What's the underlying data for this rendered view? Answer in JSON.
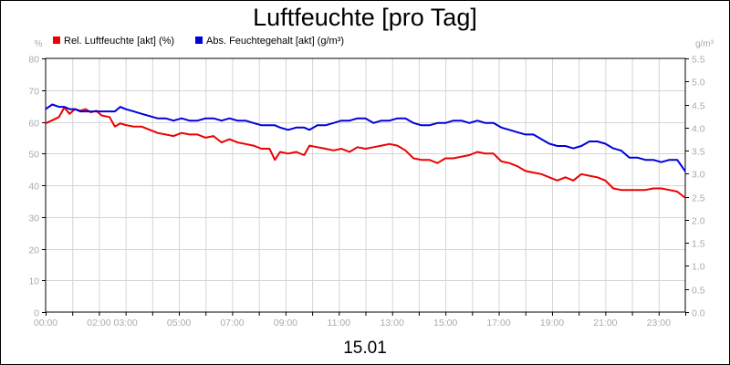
{
  "chart_data": {
    "type": "line",
    "title": "Luftfeuchte [pro Tag]",
    "xlabel": "15.01",
    "x_ticks": [
      "00:00",
      "02:00",
      "03:00",
      "05:00",
      "07:00",
      "09:00",
      "11:00",
      "13:00",
      "15:00",
      "17:00",
      "19:00",
      "21:00",
      "23:00"
    ],
    "x_tick_hours": [
      0,
      2,
      3,
      5,
      7,
      9,
      11,
      13,
      15,
      17,
      19,
      21,
      23
    ],
    "x_range_hours": [
      0,
      24
    ],
    "grid": true,
    "legend_position": "top-left",
    "y_left": {
      "unit": "%",
      "ylim": [
        0,
        80
      ],
      "ticks": [
        "0",
        "10",
        "20",
        "30",
        "40",
        "50",
        "60",
        "70",
        "80"
      ]
    },
    "y_right": {
      "unit": "g/m³",
      "ylim": [
        0,
        5.5
      ],
      "ticks": [
        "0.0",
        "0.5",
        "1.0",
        "1.5",
        "2.0",
        "2.5",
        "3.0",
        "3.5",
        "4.0",
        "4.5",
        "5.0",
        "5.5"
      ]
    },
    "series": [
      {
        "name": "Rel. Luftfeuchte [akt] (%)",
        "color": "#ee0000",
        "axis": "left",
        "x_hours": [
          0,
          0.25,
          0.5,
          0.7,
          0.9,
          1.1,
          1.3,
          1.5,
          1.7,
          1.9,
          2.1,
          2.4,
          2.6,
          2.8,
          3.0,
          3.3,
          3.6,
          3.9,
          4.2,
          4.5,
          4.8,
          5.1,
          5.4,
          5.7,
          6.0,
          6.3,
          6.6,
          6.9,
          7.2,
          7.5,
          7.8,
          8.1,
          8.4,
          8.6,
          8.8,
          9.1,
          9.4,
          9.7,
          9.9,
          10.2,
          10.5,
          10.8,
          11.1,
          11.4,
          11.7,
          12.0,
          12.3,
          12.6,
          12.9,
          13.2,
          13.5,
          13.8,
          14.1,
          14.4,
          14.7,
          15.0,
          15.3,
          15.6,
          15.9,
          16.2,
          16.5,
          16.8,
          17.1,
          17.4,
          17.7,
          18.0,
          18.3,
          18.6,
          18.9,
          19.2,
          19.5,
          19.8,
          20.1,
          20.4,
          20.7,
          21.0,
          21.3,
          21.6,
          21.9,
          22.2,
          22.5,
          22.8,
          23.1,
          23.4,
          23.7,
          24.0
        ],
        "values": [
          59.5,
          60.5,
          61.5,
          64.5,
          62.5,
          64.0,
          63.5,
          64.0,
          63.0,
          63.5,
          62.0,
          61.5,
          58.5,
          59.5,
          59.0,
          58.5,
          58.5,
          57.5,
          56.5,
          56.0,
          55.5,
          56.5,
          56.0,
          56.0,
          55.0,
          55.5,
          53.5,
          54.5,
          53.5,
          53.0,
          52.5,
          51.5,
          51.5,
          48.0,
          50.5,
          50.0,
          50.5,
          49.5,
          52.5,
          52.0,
          51.5,
          51.0,
          51.5,
          50.5,
          52.0,
          51.5,
          52.0,
          52.5,
          53.0,
          52.5,
          51.0,
          48.5,
          48.0,
          48.0,
          47.0,
          48.5,
          48.5,
          49.0,
          49.5,
          50.5,
          50.0,
          50.0,
          47.5,
          47.0,
          46.0,
          44.5,
          44.0,
          43.5,
          42.5,
          41.5,
          42.5,
          41.5,
          43.5,
          43.0,
          42.5,
          41.5,
          39.0,
          38.5,
          38.5,
          38.5,
          38.5,
          39.0,
          39.0,
          38.5,
          38.0,
          36.0
        ]
      },
      {
        "name": "Abs. Feuchtegehalt [akt] (g/m³)",
        "color": "#0000dd",
        "axis": "right",
        "x_hours": [
          0,
          0.25,
          0.5,
          0.7,
          0.9,
          1.1,
          1.3,
          1.5,
          1.7,
          1.9,
          2.1,
          2.4,
          2.6,
          2.8,
          3.0,
          3.3,
          3.6,
          3.9,
          4.2,
          4.5,
          4.8,
          5.1,
          5.4,
          5.7,
          6.0,
          6.3,
          6.6,
          6.9,
          7.2,
          7.5,
          7.8,
          8.1,
          8.4,
          8.6,
          8.8,
          9.1,
          9.4,
          9.7,
          9.9,
          10.2,
          10.5,
          10.8,
          11.1,
          11.4,
          11.7,
          12.0,
          12.3,
          12.6,
          12.9,
          13.2,
          13.5,
          13.8,
          14.1,
          14.4,
          14.7,
          15.0,
          15.3,
          15.6,
          15.9,
          16.2,
          16.5,
          16.8,
          17.1,
          17.4,
          17.7,
          18.0,
          18.3,
          18.6,
          18.9,
          19.2,
          19.5,
          19.8,
          20.1,
          20.4,
          20.7,
          21.0,
          21.3,
          21.6,
          21.9,
          22.2,
          22.5,
          22.8,
          23.1,
          23.4,
          23.7,
          24.0
        ],
        "values": [
          4.4,
          4.5,
          4.45,
          4.45,
          4.4,
          4.4,
          4.35,
          4.35,
          4.35,
          4.35,
          4.35,
          4.35,
          4.35,
          4.45,
          4.4,
          4.35,
          4.3,
          4.25,
          4.2,
          4.2,
          4.15,
          4.2,
          4.15,
          4.15,
          4.2,
          4.2,
          4.15,
          4.2,
          4.15,
          4.15,
          4.1,
          4.05,
          4.05,
          4.05,
          4.0,
          3.95,
          4.0,
          4.0,
          3.95,
          4.05,
          4.05,
          4.1,
          4.15,
          4.15,
          4.2,
          4.2,
          4.1,
          4.15,
          4.15,
          4.2,
          4.2,
          4.1,
          4.05,
          4.05,
          4.1,
          4.1,
          4.15,
          4.15,
          4.1,
          4.15,
          4.1,
          4.1,
          4.0,
          3.95,
          3.9,
          3.85,
          3.85,
          3.75,
          3.65,
          3.6,
          3.6,
          3.55,
          3.6,
          3.7,
          3.7,
          3.65,
          3.55,
          3.5,
          3.35,
          3.35,
          3.3,
          3.3,
          3.25,
          3.3,
          3.3,
          3.05
        ]
      }
    ]
  }
}
